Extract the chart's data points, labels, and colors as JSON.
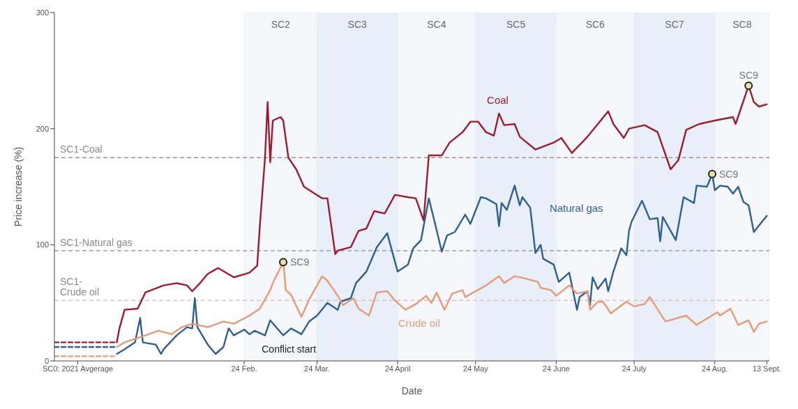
{
  "chart_data": {
    "type": "line",
    "xlabel": "Date",
    "ylabel": "Price increase (%)",
    "xlim": [
      "2021-12-13",
      "2022-09-14"
    ],
    "ylim": [
      0,
      300
    ],
    "yticks": [
      0,
      100,
      200,
      300
    ],
    "xticks": [
      {
        "value": "2021-12-22",
        "label": "SC0: 2021 Avgerage"
      },
      {
        "value": "2022-02-24",
        "label": "24 Feb."
      },
      {
        "value": "2022-03-24",
        "label": "24 Mar."
      },
      {
        "value": "2022-04-24",
        "label": "24 April"
      },
      {
        "value": "2022-05-24",
        "label": "24 May"
      },
      {
        "value": "2022-06-24",
        "label": "24 June"
      },
      {
        "value": "2022-07-24",
        "label": "24 July"
      },
      {
        "value": "2022-08-24",
        "label": "24 Aug."
      },
      {
        "value": "2022-09-13",
        "label": "13 Sept."
      }
    ],
    "grid": false,
    "legend": false,
    "marker": "none",
    "line_style": "solid",
    "series": [
      {
        "name": "Coal",
        "color": "#9b1c2e",
        "x": [
          "2022-01-06",
          "2022-01-07",
          "2022-01-09",
          "2022-01-14",
          "2022-01-17",
          "2022-01-24",
          "2022-01-29",
          "2022-02-02",
          "2022-02-04",
          "2022-02-07",
          "2022-02-10",
          "2022-02-14",
          "2022-02-20",
          "2022-02-26",
          "2022-03-01",
          "2022-03-02",
          "2022-03-04",
          "2022-03-05",
          "2022-03-06",
          "2022-03-07",
          "2022-03-10",
          "2022-03-11",
          "2022-03-13",
          "2022-03-16",
          "2022-03-19",
          "2022-03-26",
          "2022-03-28",
          "2022-03-31",
          "2022-04-01",
          "2022-04-06",
          "2022-04-09",
          "2022-04-12",
          "2022-04-15",
          "2022-04-19",
          "2022-04-23",
          "2022-04-28",
          "2022-05-01",
          "2022-05-04",
          "2022-05-06",
          "2022-05-11",
          "2022-05-14",
          "2022-05-19",
          "2022-05-22",
          "2022-05-25",
          "2022-05-28",
          "2022-05-31",
          "2022-06-02",
          "2022-06-04",
          "2022-06-08",
          "2022-06-10",
          "2022-06-16",
          "2022-06-23",
          "2022-06-26",
          "2022-06-30",
          "2022-07-06",
          "2022-07-10",
          "2022-07-14",
          "2022-07-16",
          "2022-07-20",
          "2022-07-22",
          "2022-07-28",
          "2022-08-02",
          "2022-08-07",
          "2022-08-10",
          "2022-08-13",
          "2022-08-18",
          "2022-08-24",
          "2022-08-31",
          "2022-09-01",
          "2022-09-06",
          "2022-09-08",
          "2022-09-10",
          "2022-09-13"
        ],
        "values": [
          16,
          28,
          44,
          45,
          59,
          65,
          67,
          65,
          60,
          67,
          75,
          80,
          72,
          76,
          82,
          116,
          175,
          223,
          171,
          207,
          210,
          207,
          175,
          165,
          150,
          140,
          140,
          92,
          95,
          98,
          112,
          114,
          129,
          127,
          143,
          141,
          140,
          121,
          177,
          177,
          188,
          197,
          206,
          206,
          197,
          194,
          213,
          203,
          204,
          193,
          182,
          188,
          192,
          179,
          193,
          204,
          215,
          204,
          192,
          200,
          203,
          197,
          165,
          173,
          199,
          204,
          207,
          210,
          204,
          237,
          223,
          219,
          221
        ]
      },
      {
        "name": "Natural gas",
        "color": "#2e5f8f",
        "x": [
          "2022-01-06",
          "2022-01-09",
          "2022-01-13",
          "2022-01-15",
          "2022-01-16",
          "2022-01-21",
          "2022-01-23",
          "2022-01-24",
          "2022-01-29",
          "2022-02-02",
          "2022-02-04",
          "2022-02-05",
          "2022-02-06",
          "2022-02-10",
          "2022-02-13",
          "2022-02-16",
          "2022-02-18",
          "2022-02-20",
          "2022-02-24",
          "2022-02-26",
          "2022-02-28",
          "2022-03-04",
          "2022-03-06",
          "2022-03-11",
          "2022-03-14",
          "2022-03-18",
          "2022-03-21",
          "2022-03-24",
          "2022-03-28",
          "2022-04-01",
          "2022-04-02",
          "2022-04-06",
          "2022-04-08",
          "2022-04-12",
          "2022-04-16",
          "2022-04-20",
          "2022-04-24",
          "2022-04-28",
          "2022-04-30",
          "2022-05-03",
          "2022-05-06",
          "2022-05-08",
          "2022-05-11",
          "2022-05-13",
          "2022-05-16",
          "2022-05-20",
          "2022-05-22",
          "2022-05-26",
          "2022-05-28",
          "2022-06-01",
          "2022-06-02",
          "2022-06-03",
          "2022-06-05",
          "2022-06-08",
          "2022-06-10",
          "2022-06-11",
          "2022-06-14",
          "2022-06-16",
          "2022-06-18",
          "2022-06-19",
          "2022-06-23",
          "2022-06-25",
          "2022-06-29",
          "2022-07-02",
          "2022-07-03",
          "2022-07-06",
          "2022-07-07",
          "2022-07-08",
          "2022-07-10",
          "2022-07-13",
          "2022-07-14",
          "2022-07-16",
          "2022-07-19",
          "2022-07-21",
          "2022-07-22",
          "2022-07-23",
          "2022-07-27",
          "2022-07-30",
          "2022-08-02",
          "2022-08-03",
          "2022-08-04",
          "2022-08-09",
          "2022-08-12",
          "2022-08-16",
          "2022-08-17",
          "2022-08-21",
          "2022-08-23",
          "2022-08-24",
          "2022-08-26",
          "2022-08-29",
          "2022-08-31",
          "2022-09-02",
          "2022-09-04",
          "2022-09-06",
          "2022-09-08",
          "2022-09-13"
        ],
        "values": [
          6,
          10,
          16,
          37,
          16,
          14,
          6,
          10,
          22,
          29,
          28,
          54,
          29,
          14,
          6,
          12,
          28,
          22,
          27,
          23,
          26,
          22,
          35,
          22,
          28,
          23,
          34,
          39,
          50,
          44,
          51,
          54,
          67,
          77,
          98,
          110,
          77,
          83,
          97,
          104,
          140,
          122,
          94,
          108,
          111,
          126,
          118,
          141,
          140,
          135,
          116,
          136,
          130,
          151,
          134,
          141,
          132,
          93,
          100,
          88,
          83,
          68,
          76,
          44,
          55,
          60,
          48,
          72,
          62,
          71,
          60,
          77,
          97,
          91,
          112,
          120,
          138,
          122,
          123,
          103,
          124,
          104,
          141,
          136,
          151,
          150,
          161,
          147,
          151,
          150,
          144,
          150,
          137,
          134,
          111,
          125
        ]
      },
      {
        "name": "Crude oil",
        "color": "#e89a78",
        "x": [
          "2022-01-06",
          "2022-01-09",
          "2022-01-17",
          "2022-01-22",
          "2022-01-27",
          "2022-01-31",
          "2022-02-04",
          "2022-02-10",
          "2022-02-16",
          "2022-02-20",
          "2022-02-26",
          "2022-03-02",
          "2022-03-06",
          "2022-03-07",
          "2022-03-11",
          "2022-03-12",
          "2022-03-14",
          "2022-03-18",
          "2022-03-21",
          "2022-03-26",
          "2022-03-28",
          "2022-04-01",
          "2022-04-03",
          "2022-04-07",
          "2022-04-09",
          "2022-04-13",
          "2022-04-16",
          "2022-04-20",
          "2022-04-23",
          "2022-04-27",
          "2022-05-01",
          "2022-05-05",
          "2022-05-07",
          "2022-05-09",
          "2022-05-12",
          "2022-05-15",
          "2022-05-19",
          "2022-05-20",
          "2022-05-24",
          "2022-05-28",
          "2022-06-02",
          "2022-06-04",
          "2022-06-08",
          "2022-06-12",
          "2022-06-17",
          "2022-06-18",
          "2022-06-22",
          "2022-06-24",
          "2022-06-29",
          "2022-07-02",
          "2022-07-06",
          "2022-07-07",
          "2022-07-10",
          "2022-07-12",
          "2022-07-15",
          "2022-07-21",
          "2022-07-24",
          "2022-07-28",
          "2022-07-30",
          "2022-08-05",
          "2022-08-13",
          "2022-08-17",
          "2022-08-25",
          "2022-08-26",
          "2022-08-30",
          "2022-09-02",
          "2022-09-06",
          "2022-09-08",
          "2022-09-10",
          "2022-09-13"
        ],
        "values": [
          12,
          16,
          22,
          26,
          23,
          29,
          32,
          29,
          34,
          32,
          39,
          45,
          61,
          67,
          85,
          61,
          57,
          38,
          53,
          73,
          69,
          56,
          48,
          54,
          45,
          39,
          59,
          60,
          52,
          44,
          49,
          56,
          50,
          59,
          44,
          58,
          61,
          55,
          60,
          65,
          73,
          67,
          73,
          71,
          68,
          63,
          61,
          56,
          65,
          58,
          60,
          44,
          51,
          51,
          41,
          51,
          47,
          49,
          55,
          34,
          39,
          31,
          42,
          39,
          45,
          31,
          35,
          25,
          32,
          34
        ]
      },
      {
        "type": "line",
        "color": "#9b1c2e",
        "line_style": "dashed",
        "x": [
          "2021-12-13",
          "2022-01-06"
        ],
        "values": [
          16,
          16
        ]
      },
      {
        "type": "line",
        "color": "#2e5f8f",
        "line_style": "dashed",
        "x": [
          "2021-12-13",
          "2022-01-06"
        ],
        "values": [
          12,
          12
        ]
      },
      {
        "type": "line",
        "color": "#e89a78",
        "line_style": "dashed",
        "x": [
          "2021-12-13",
          "2022-01-06"
        ],
        "values": [
          4,
          4
        ]
      },
      {
        "type": "scatter",
        "marker": "circle",
        "color": "#e8e2a0",
        "x": [
          "2022-03-11",
          "2022-08-23",
          "2022-09-06"
        ],
        "values": [
          85,
          161,
          237
        ]
      }
    ],
    "ref_lines": [
      {
        "axis": "y",
        "value": 175,
        "label": "SC1-Coal",
        "color": "#b08a8e",
        "line_style": "dashed"
      },
      {
        "axis": "y",
        "value": 95,
        "label": "SC1-Natural gas",
        "color": "#9aa0a8",
        "line_style": "dashed"
      },
      {
        "axis": "y",
        "value": 52,
        "label": "SC1-\nCrude oil",
        "color": "#d8c4bc",
        "line_style": "dashed"
      }
    ],
    "bands": [
      {
        "axis": "x",
        "from": "2022-02-24",
        "to": "2022-03-24",
        "label": "SC2",
        "color": "#f5f7fb"
      },
      {
        "axis": "x",
        "from": "2022-03-24",
        "to": "2022-04-24",
        "label": "SC3",
        "color": "#e9eff8"
      },
      {
        "axis": "x",
        "from": "2022-04-24",
        "to": "2022-05-24",
        "label": "SC4",
        "color": "#f5f7fb"
      },
      {
        "axis": "x",
        "from": "2022-05-24",
        "to": "2022-06-24",
        "label": "SC5",
        "color": "#e9eff8"
      },
      {
        "axis": "x",
        "from": "2022-06-24",
        "to": "2022-07-24",
        "label": "SC6",
        "color": "#f5f7fb"
      },
      {
        "axis": "x",
        "from": "2022-07-24",
        "to": "2022-08-24",
        "label": "SC7",
        "color": "#e9eff8"
      },
      {
        "axis": "x",
        "from": "2022-08-24",
        "to": "2022-09-14",
        "label": "SC8",
        "color": "#f5f7fb"
      }
    ],
    "annotations": [
      {
        "text": "SC9",
        "x": "2022-03-11",
        "y": 85
      },
      {
        "text": "SC9",
        "x": "2022-08-23",
        "y": 161
      },
      {
        "text": "SC9",
        "x": "2022-09-06",
        "y": 237
      },
      "Conflict start"
    ]
  }
}
